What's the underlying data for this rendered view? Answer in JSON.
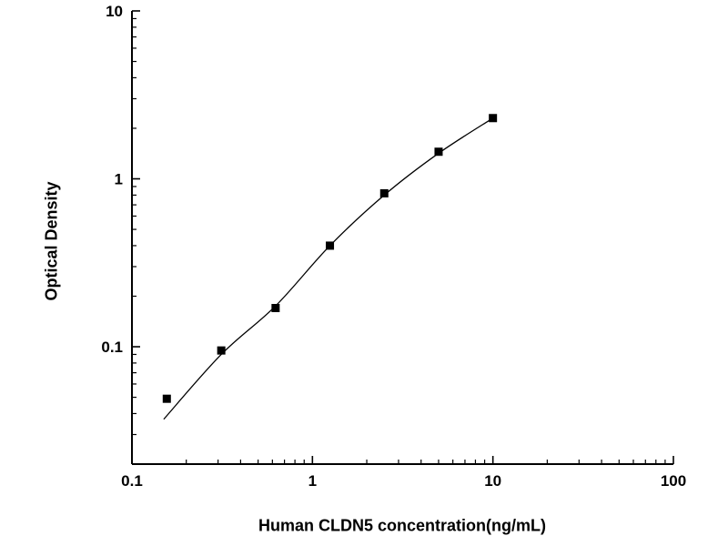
{
  "chart_data": {
    "type": "scatter",
    "title": "",
    "xlabel": "Human CLDN5 concentration(ng/mL)",
    "ylabel": "Optical Density",
    "x_scale": "log",
    "y_scale": "log",
    "xlim": [
      0.1,
      100
    ],
    "ylim": [
      0.02,
      10
    ],
    "x_ticks": [
      0.1,
      1,
      10,
      100
    ],
    "y_ticks": [
      0.1,
      1,
      10
    ],
    "grid": false,
    "legend": null,
    "marker": {
      "shape": "square",
      "color": "#000000",
      "size": 9
    },
    "line_color": "#000000",
    "points": [
      {
        "x": 0.156,
        "y": 0.049
      },
      {
        "x": 0.3125,
        "y": 0.095
      },
      {
        "x": 0.625,
        "y": 0.17
      },
      {
        "x": 1.25,
        "y": 0.4
      },
      {
        "x": 2.5,
        "y": 0.82
      },
      {
        "x": 5,
        "y": 1.45
      },
      {
        "x": 10,
        "y": 2.3
      }
    ],
    "curve_anchors": [
      {
        "x": 0.15,
        "y": 0.037
      },
      {
        "x": 0.3125,
        "y": 0.09
      },
      {
        "x": 0.625,
        "y": 0.175
      },
      {
        "x": 1.25,
        "y": 0.4
      },
      {
        "x": 2.5,
        "y": 0.8
      },
      {
        "x": 5,
        "y": 1.42
      },
      {
        "x": 10,
        "y": 2.3
      }
    ]
  }
}
